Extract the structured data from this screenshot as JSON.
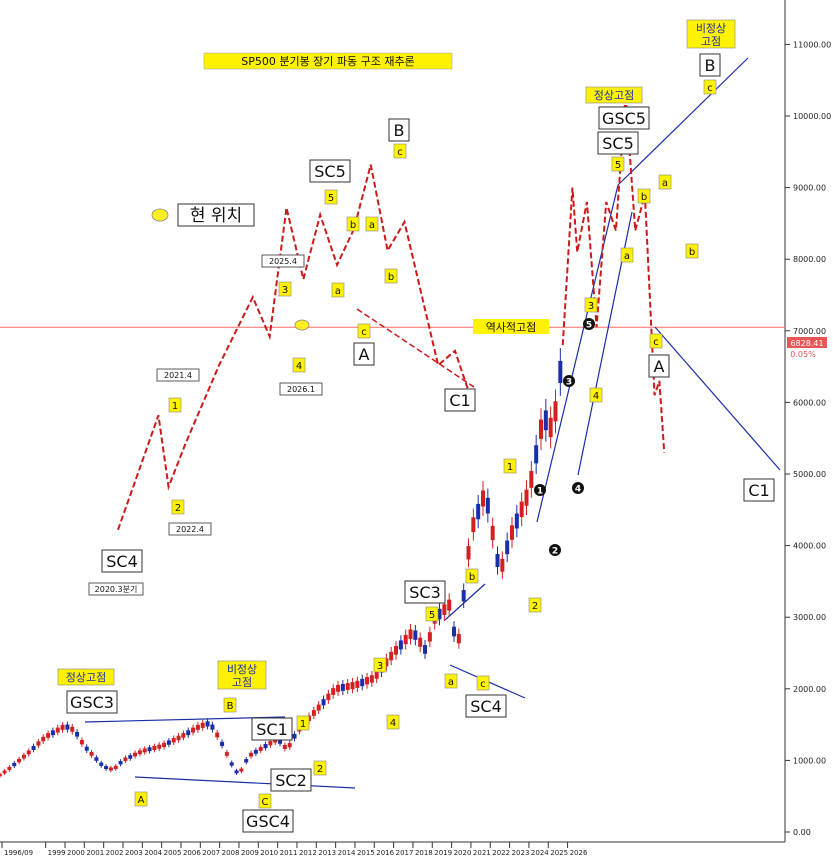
{
  "chart_data": {
    "type": "line",
    "title": "SP500 분기봉 장기 파동 구조 재추론",
    "y_axis": {
      "range": [
        0,
        11500
      ],
      "ticks": [
        "0.00",
        "1000.00",
        "2000.00",
        "3000.00",
        "4000.00",
        "5000.00",
        "6000.00",
        "7000.00",
        "8000.00",
        "9000.00",
        "10000.00",
        "11000.00"
      ]
    },
    "x_axis": {
      "ticks": [
        "1996/09",
        "1999",
        "2000",
        "2001",
        "2002",
        "2003",
        "2004",
        "2005",
        "2006",
        "2007",
        "2008",
        "2009",
        "2010",
        "2011",
        "2012",
        "2013",
        "2014",
        "2015",
        "2016",
        "2017",
        "2018",
        "2019",
        "2020",
        "2021",
        "2022",
        "2023",
        "2024",
        "2025",
        "2026"
      ]
    },
    "price_tag": {
      "value": "6828.41",
      "change": "0.05%"
    },
    "horizontal_line": {
      "label": "역사적고점",
      "value": 7050
    },
    "current_position_label": "현 위치",
    "quarterly_close": [
      [
        "1996",
        690
      ],
      [
        "1997",
        860
      ],
      [
        "1998",
        1080
      ],
      [
        "1999",
        1330
      ],
      [
        "2000",
        1480
      ],
      [
        "2000.5",
        1420
      ],
      [
        "2001",
        1200
      ],
      [
        "2002",
        910
      ],
      [
        "2002.5",
        870
      ],
      [
        "2003",
        1000
      ],
      [
        "2004",
        1130
      ],
      [
        "2005",
        1200
      ],
      [
        "2006",
        1330
      ],
      [
        "2007",
        1480
      ],
      [
        "2007.5",
        1520
      ],
      [
        "2008",
        1300
      ],
      [
        "2008.75",
        880
      ],
      [
        "2009",
        800
      ],
      [
        "2009.5",
        1060
      ],
      [
        "2010",
        1140
      ],
      [
        "2011",
        1300
      ],
      [
        "2011.5",
        1150
      ],
      [
        "2012",
        1400
      ],
      [
        "2013",
        1700
      ],
      [
        "2014",
        2000
      ],
      [
        "2015",
        2050
      ],
      [
        "2016",
        2150
      ],
      [
        "2017",
        2500
      ],
      [
        "2018",
        2800
      ],
      [
        "2018.75",
        2500
      ],
      [
        "2019",
        2950
      ],
      [
        "2020",
        3200
      ],
      [
        "2020.25",
        2400
      ],
      [
        "2020.75",
        3600
      ],
      [
        "2021",
        4200
      ],
      [
        "2021.75",
        4750
      ],
      [
        "2022.5",
        3600
      ],
      [
        "2023",
        4100
      ],
      [
        "2024",
        4750
      ],
      [
        "2024.75",
        5800
      ],
      [
        "2025.25",
        5600
      ],
      [
        "2025.75",
        6700
      ]
    ],
    "projection_future": [
      [
        "2025.75",
        6800
      ],
      [
        "2026.25",
        9000
      ],
      [
        "2026.5",
        8100
      ],
      [
        "2027",
        8800
      ],
      [
        "2027.5",
        7050
      ],
      [
        "2028",
        8800
      ],
      [
        "2028.5",
        8400
      ],
      [
        "2029",
        10300
      ],
      [
        "2029.5",
        8400
      ],
      [
        "2030",
        8900
      ],
      [
        "2030.5",
        6100
      ],
      [
        "2030.75",
        6300
      ],
      [
        "2031",
        5300
      ]
    ],
    "projection_inset": [
      [
        "2010",
        4100
      ],
      [
        "2011.2",
        5700
      ],
      [
        "2011.5",
        4700
      ],
      [
        "2012",
        5300
      ],
      [
        "2013",
        6400
      ],
      [
        "2014",
        7350
      ],
      [
        "2014.5",
        6800
      ],
      [
        "2015",
        8600
      ],
      [
        "2015.5",
        7600
      ],
      [
        "2016",
        8500
      ],
      [
        "2016.5",
        7800
      ],
      [
        "2017",
        8300
      ],
      [
        "2017.5",
        9200
      ],
      [
        "2018",
        8000
      ],
      [
        "2018.5",
        8400
      ],
      [
        "2019.5",
        6400
      ],
      [
        "2020",
        6600
      ],
      [
        "2020.5",
        5900
      ]
    ],
    "wave_labels": {
      "gsc3": "GSC3",
      "gsc4": "GSC4",
      "gsc5": "GSC5",
      "sc1": "SC1",
      "sc2": "SC2",
      "sc3": "SC3",
      "sc4": "SC4",
      "sc5": "SC5",
      "normal_top": "정상고점",
      "abnormal_top_l1": "비정상",
      "abnormal_top_l2": "고점",
      "cap_a": "A",
      "cap_b": "B",
      "cap_c": "C",
      "c1": "C1",
      "n1": "1",
      "n2": "2",
      "n3": "3",
      "n4": "4",
      "n5": "5",
      "low_a": "a",
      "low_b": "b",
      "low_c": "c",
      "dates": {
        "d2020": "2020.3분기",
        "d2021": "2021.4",
        "d2022": "2022.4",
        "d2025": "2025.4",
        "d2026": "2026.1"
      }
    }
  }
}
